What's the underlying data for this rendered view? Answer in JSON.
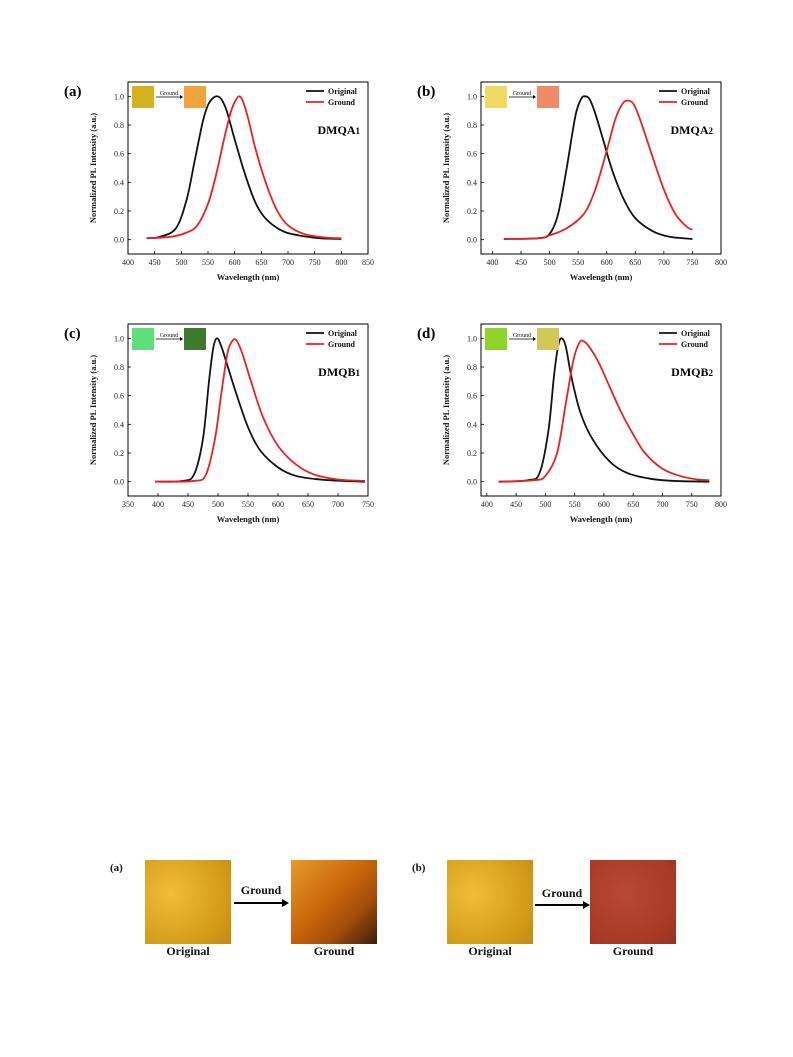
{
  "chart_data": [
    {
      "panel": "(a)",
      "compound": "DMQA",
      "compound_sub": "1",
      "type": "line",
      "xlabel": "Wavelength (nm)",
      "ylabel": "Normalized PL Intensity (a.u.)",
      "xlim": [
        400,
        850
      ],
      "ylim": [
        -0.1,
        1.1
      ],
      "xticks": [
        400,
        450,
        500,
        550,
        600,
        650,
        700,
        750,
        800,
        850
      ],
      "yticks": [
        0.0,
        0.2,
        0.4,
        0.6,
        0.8,
        1.0
      ],
      "legend": "top-right",
      "inset": {
        "label": "Ground",
        "from_color": "#d6b21e",
        "to_color": "#f0a43a"
      },
      "series": [
        {
          "name": "Original",
          "color": "#111111",
          "x": [
            435,
            460,
            490,
            510,
            525,
            540,
            550,
            560,
            568,
            575,
            585,
            600,
            620,
            640,
            660,
            690,
            720,
            760,
            800
          ],
          "y": [
            0.01,
            0.02,
            0.08,
            0.28,
            0.55,
            0.82,
            0.94,
            0.99,
            1.0,
            0.98,
            0.9,
            0.7,
            0.45,
            0.25,
            0.14,
            0.06,
            0.03,
            0.01,
            0.005
          ]
        },
        {
          "name": "Ground",
          "color": "#e8231f",
          "x": [
            435,
            480,
            510,
            530,
            550,
            565,
            580,
            592,
            600,
            608,
            615,
            625,
            640,
            660,
            680,
            700,
            730,
            770,
            800
          ],
          "y": [
            0.01,
            0.02,
            0.05,
            0.1,
            0.25,
            0.45,
            0.7,
            0.88,
            0.96,
            1.0,
            0.97,
            0.85,
            0.62,
            0.38,
            0.2,
            0.1,
            0.04,
            0.015,
            0.01
          ]
        }
      ]
    },
    {
      "panel": "(b)",
      "compound": "DMQA",
      "compound_sub": "2",
      "type": "line",
      "xlabel": "Wavelength (nm)",
      "ylabel": "Normalized PL Intensity (a.u.)",
      "xlim": [
        380,
        800
      ],
      "ylim": [
        -0.1,
        1.1
      ],
      "xticks": [
        400,
        450,
        500,
        550,
        600,
        650,
        700,
        750,
        800
      ],
      "yticks": [
        0.0,
        0.2,
        0.4,
        0.6,
        0.8,
        1.0
      ],
      "legend": "top-right",
      "inset": {
        "label": "Ground",
        "from_color": "#f2da62",
        "to_color": "#ee8a66"
      },
      "series": [
        {
          "name": "Original",
          "color": "#111111",
          "x": [
            420,
            480,
            500,
            515,
            530,
            545,
            555,
            562,
            570,
            580,
            595,
            610,
            630,
            650,
            680,
            710,
            750
          ],
          "y": [
            0.005,
            0.01,
            0.04,
            0.18,
            0.5,
            0.86,
            0.98,
            1.0,
            0.98,
            0.88,
            0.68,
            0.48,
            0.28,
            0.15,
            0.06,
            0.02,
            0.005
          ]
        },
        {
          "name": "Ground",
          "color": "#e8231f",
          "x": [
            420,
            480,
            500,
            530,
            560,
            580,
            600,
            615,
            628,
            638,
            648,
            660,
            680,
            700,
            720,
            740,
            750
          ],
          "y": [
            0.005,
            0.01,
            0.03,
            0.08,
            0.18,
            0.35,
            0.62,
            0.84,
            0.95,
            0.97,
            0.94,
            0.82,
            0.58,
            0.35,
            0.18,
            0.09,
            0.07
          ]
        }
      ]
    },
    {
      "panel": "(c)",
      "compound": "DMQB",
      "compound_sub": "1",
      "type": "line",
      "xlabel": "Wavelength (nm)",
      "ylabel": "Normalized PL Intensity (a.u.)",
      "xlim": [
        350,
        750
      ],
      "ylim": [
        -0.1,
        1.1
      ],
      "xticks": [
        350,
        400,
        450,
        500,
        550,
        600,
        650,
        700,
        750
      ],
      "yticks": [
        0.0,
        0.2,
        0.4,
        0.6,
        0.8,
        1.0
      ],
      "legend": "top-right",
      "inset": {
        "label": "Ground",
        "from_color": "#5de07a",
        "to_color": "#3e7a2c"
      },
      "series": [
        {
          "name": "Original",
          "color": "#111111",
          "x": [
            395,
            440,
            460,
            475,
            485,
            492,
            498,
            505,
            515,
            530,
            550,
            570,
            600,
            630,
            670,
            710,
            745
          ],
          "y": [
            0.0,
            0.005,
            0.05,
            0.3,
            0.7,
            0.93,
            1.0,
            0.95,
            0.82,
            0.62,
            0.38,
            0.22,
            0.1,
            0.04,
            0.015,
            0.005,
            0.0
          ]
        },
        {
          "name": "Ground",
          "color": "#e8231f",
          "x": [
            395,
            460,
            480,
            495,
            505,
            515,
            522,
            530,
            540,
            555,
            575,
            600,
            630,
            660,
            700,
            745
          ],
          "y": [
            0.0,
            0.005,
            0.05,
            0.3,
            0.6,
            0.88,
            0.97,
            0.99,
            0.9,
            0.7,
            0.45,
            0.25,
            0.12,
            0.05,
            0.015,
            0.005
          ]
        }
      ]
    },
    {
      "panel": "(d)",
      "compound": "DMQB",
      "compound_sub": "2",
      "type": "line",
      "xlabel": "Wavelength (nm)",
      "ylabel": "Normalized PL Intensity (a.u.)",
      "xlim": [
        390,
        800
      ],
      "ylim": [
        -0.1,
        1.1
      ],
      "xticks": [
        400,
        450,
        500,
        550,
        600,
        650,
        700,
        750,
        800
      ],
      "yticks": [
        0.0,
        0.2,
        0.4,
        0.6,
        0.8,
        1.0
      ],
      "legend": "top-right",
      "inset": {
        "label": "Ground",
        "from_color": "#8fd42a",
        "to_color": "#d2c656"
      },
      "series": [
        {
          "name": "Original",
          "color": "#111111",
          "x": [
            420,
            470,
            490,
            505,
            515,
            522,
            528,
            535,
            545,
            560,
            580,
            610,
            640,
            680,
            720,
            780
          ],
          "y": [
            0.0,
            0.01,
            0.06,
            0.35,
            0.75,
            0.95,
            1.0,
            0.94,
            0.72,
            0.48,
            0.3,
            0.14,
            0.06,
            0.02,
            0.005,
            0.0
          ]
        },
        {
          "name": "Ground",
          "color": "#e8231f",
          "x": [
            420,
            480,
            500,
            520,
            535,
            548,
            558,
            565,
            575,
            590,
            610,
            630,
            650,
            670,
            700,
            730,
            760,
            780
          ],
          "y": [
            0.0,
            0.01,
            0.04,
            0.2,
            0.55,
            0.85,
            0.97,
            0.98,
            0.94,
            0.84,
            0.66,
            0.48,
            0.33,
            0.2,
            0.09,
            0.04,
            0.015,
            0.01
          ]
        }
      ]
    }
  ],
  "photos": {
    "a": {
      "letter": "(a)",
      "original_label": "Original",
      "arrow_label": "Ground",
      "ground_label": "Ground",
      "original_color": "#e0a51e",
      "ground_color": "#c8670a"
    },
    "b": {
      "letter": "(b)",
      "original_label": "Original",
      "arrow_label": "Ground",
      "ground_label": "Ground",
      "original_color": "#e0a51e",
      "ground_color": "#b0402a"
    }
  }
}
